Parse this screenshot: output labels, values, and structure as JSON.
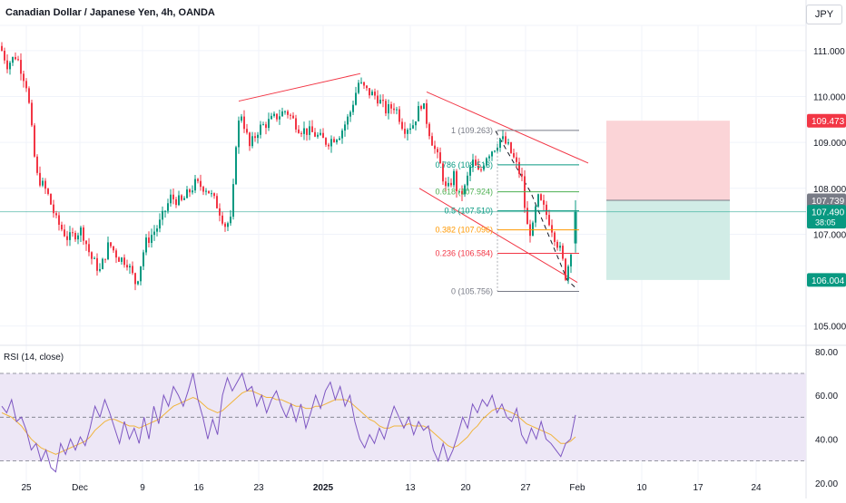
{
  "header": {
    "title": "Canadian Dollar / Japanese Yen, 4h, OANDA",
    "currency": "JPY"
  },
  "rsi": {
    "title": "RSI (14, close)",
    "ticks": [
      "80.00",
      "60.00",
      "40.00",
      "20.00"
    ]
  },
  "colors": {
    "bull": "#089981",
    "bear": "#f23645",
    "channel": "#f23645",
    "rsi_line": "#7e57c2",
    "rsi_ma": "#f0b43c",
    "rsi_band": "#ede7f6",
    "tp_zone": "#d1ece6",
    "sl_zone": "#fbd4d7"
  },
  "chart_data": {
    "type": "candlestick",
    "title": "Canadian Dollar / Japanese Yen, 4h, OANDA",
    "ylim": [
      104.6,
      111.55
    ],
    "y_ticks": [
      "111.000",
      "110.000",
      "109.000",
      "108.000",
      "107.000",
      "105.000"
    ],
    "x_ticks": [
      "25",
      "Dec",
      "9",
      "16",
      "23",
      "2025",
      "13",
      "20",
      "27",
      "Feb",
      "10",
      "17",
      "24"
    ],
    "price_path": [
      [
        0,
        111.1
      ],
      [
        8,
        110.7
      ],
      [
        18,
        110.9
      ],
      [
        30,
        110.2
      ],
      [
        40,
        108.3
      ],
      [
        52,
        107.9
      ],
      [
        62,
        107.3
      ],
      [
        75,
        106.9
      ],
      [
        90,
        107.1
      ],
      [
        100,
        106.5
      ],
      [
        110,
        106.2
      ],
      [
        120,
        106.8
      ],
      [
        130,
        106.5
      ],
      [
        140,
        106.4
      ],
      [
        150,
        105.9
      ],
      [
        160,
        106.8
      ],
      [
        175,
        107.2
      ],
      [
        188,
        107.8
      ],
      [
        200,
        107.7
      ],
      [
        215,
        108.1
      ],
      [
        228,
        108.0
      ],
      [
        240,
        107.6
      ],
      [
        248,
        107.2
      ],
      [
        255,
        107.3
      ],
      [
        260,
        109.0
      ],
      [
        265,
        109.7
      ],
      [
        275,
        108.9
      ],
      [
        285,
        109.3
      ],
      [
        300,
        109.5
      ],
      [
        315,
        109.7
      ],
      [
        330,
        109.3
      ],
      [
        345,
        109.2
      ],
      [
        360,
        109.0
      ],
      [
        375,
        109.2
      ],
      [
        385,
        109.6
      ],
      [
        395,
        110.3
      ],
      [
        405,
        110.1
      ],
      [
        415,
        110.0
      ],
      [
        425,
        109.7
      ],
      [
        435,
        109.8
      ],
      [
        445,
        109.3
      ],
      [
        455,
        109.4
      ],
      [
        465,
        109.9
      ],
      [
        472,
        109.3
      ],
      [
        478,
        108.9
      ],
      [
        485,
        108.5
      ],
      [
        492,
        107.9
      ],
      [
        500,
        108.3
      ],
      [
        505,
        107.8
      ],
      [
        512,
        108.0
      ],
      [
        520,
        108.6
      ],
      [
        528,
        108.3
      ],
      [
        535,
        108.7
      ],
      [
        545,
        108.9
      ],
      [
        552,
        109.1
      ],
      [
        560,
        108.9
      ],
      [
        567,
        108.6
      ],
      [
        575,
        108.2
      ],
      [
        580,
        107.2
      ],
      [
        586,
        107.0
      ],
      [
        592,
        107.8
      ],
      [
        598,
        107.6
      ],
      [
        605,
        107.3
      ],
      [
        612,
        106.9
      ],
      [
        618,
        106.6
      ],
      [
        623,
        106.1
      ],
      [
        627,
        106.4
      ],
      [
        632,
        107.1
      ],
      [
        636,
        107.5
      ]
    ],
    "last_candle": {
      "open": 106.8,
      "high": 107.74,
      "low": 106.6,
      "close": 107.49
    },
    "price_labels": [
      {
        "text": "109.473",
        "value": 109.473,
        "color": "#f23645"
      },
      {
        "text": "107.739",
        "value": 107.739,
        "color": "#787b86"
      },
      {
        "text": "107.490",
        "value": 107.49,
        "color": "#089981",
        "sub": "38:05"
      },
      {
        "text": "106.004",
        "value": 106.004,
        "color": "#089981"
      }
    ],
    "fibonacci": [
      {
        "label": "1 (109.263)",
        "ratio": 1,
        "value": 109.263,
        "color": "#787b86"
      },
      {
        "label": "0.786 (108.513)",
        "ratio": 0.786,
        "value": 108.513,
        "color": "#089981"
      },
      {
        "label": "0.618 (107.924)",
        "ratio": 0.618,
        "value": 107.924,
        "color": "#4caf50"
      },
      {
        "label": "0.5 (107.510)",
        "ratio": 0.5,
        "value": 107.51,
        "color": "#089981"
      },
      {
        "label": "0.382 (107.096)",
        "ratio": 0.382,
        "value": 107.096,
        "color": "#ff9800"
      },
      {
        "label": "0.236 (106.584)",
        "ratio": 0.236,
        "value": 106.584,
        "color": "#f23645"
      },
      {
        "label": "0 (105.756)",
        "ratio": 0,
        "value": 105.756,
        "color": "#787b86"
      }
    ],
    "position": {
      "stop": 109.473,
      "entry": 107.739,
      "target": 106.004
    },
    "trend_lines": [
      {
        "from": [
          263,
          109.9
        ],
        "to": [
          397,
          110.5
        ]
      },
      {
        "from": [
          470,
          110.1
        ],
        "to": [
          648,
          108.55
        ]
      },
      {
        "from": [
          462,
          108.0
        ],
        "to": [
          636,
          105.95
        ]
      }
    ],
    "rsi": {
      "name": "RSI (14, close)",
      "upper": 70,
      "mid": 50,
      "lower": 30,
      "ylim": [
        17,
        82
      ],
      "values": [
        55,
        52,
        58,
        48,
        50,
        44,
        35,
        38,
        30,
        35,
        27,
        25,
        38,
        33,
        40,
        35,
        41,
        37,
        45,
        55,
        50,
        58,
        52,
        45,
        38,
        48,
        40,
        45,
        38,
        50,
        40,
        55,
        47,
        60,
        55,
        64,
        60,
        55,
        62,
        70,
        58,
        50,
        40,
        49,
        42,
        60,
        68,
        62,
        66,
        70,
        62,
        64,
        55,
        60,
        52,
        58,
        62,
        55,
        50,
        56,
        48,
        56,
        45,
        52,
        60,
        54,
        62,
        66,
        58,
        64,
        55,
        60,
        48,
        40,
        36,
        42,
        38,
        45,
        40,
        48,
        55,
        50,
        45,
        50,
        42,
        48,
        44,
        46,
        35,
        30,
        38,
        30,
        35,
        42,
        50,
        45,
        56,
        52,
        58,
        55,
        60,
        52,
        56,
        50,
        48,
        54,
        42,
        38,
        45,
        40,
        48,
        40,
        38,
        35,
        32,
        38,
        40,
        51
      ],
      "ma": [
        52,
        51,
        50,
        48,
        46,
        43,
        40,
        38,
        36,
        35,
        34,
        33,
        34,
        35,
        36,
        37,
        38,
        39,
        41,
        44,
        46,
        48,
        49,
        49,
        48,
        47,
        46,
        46,
        45,
        46,
        47,
        48,
        49,
        51,
        53,
        55,
        56,
        57,
        58,
        59,
        58,
        56,
        54,
        53,
        52,
        53,
        55,
        57,
        59,
        61,
        62,
        62,
        61,
        60,
        59,
        59,
        58,
        58,
        57,
        56,
        55,
        55,
        54,
        54,
        55,
        55,
        56,
        57,
        58,
        58,
        58,
        57,
        55,
        53,
        51,
        49,
        48,
        46,
        45,
        45,
        46,
        46,
        46,
        47,
        46,
        46,
        46,
        45,
        43,
        41,
        39,
        37,
        36,
        37,
        39,
        41,
        44,
        46,
        49,
        51,
        53,
        54,
        54,
        53,
        52,
        51,
        49,
        47,
        46,
        45,
        44,
        43,
        42,
        40,
        38,
        38,
        39,
        41
      ]
    }
  }
}
